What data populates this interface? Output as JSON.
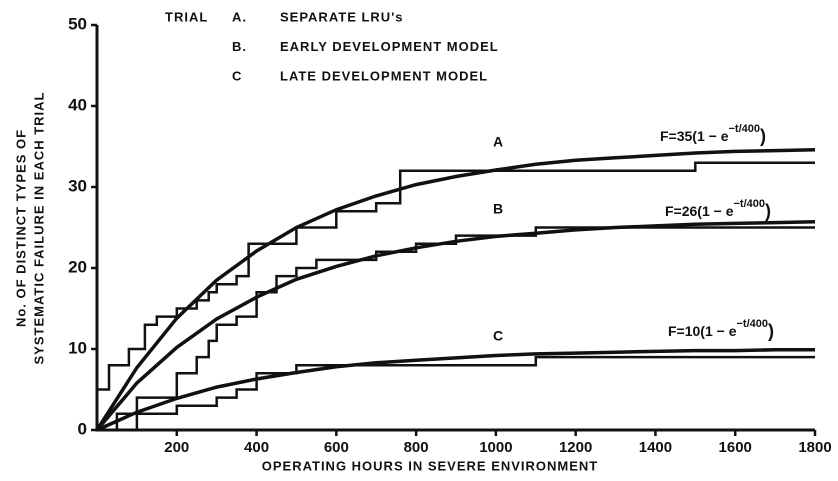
{
  "chart_data": {
    "type": "line",
    "x_label": "OPERATING HOURS IN SEVERE ENVIRONMENT",
    "y_label": [
      "No. OF DISTINCT TYPES OF",
      "SYSTEMATIC FAILURE IN EACH TRIAL"
    ],
    "legend_title": "TRIAL",
    "legend": [
      {
        "key": "A.",
        "label": "SEPARATE LRU's"
      },
      {
        "key": "B.",
        "label": "EARLY DEVELOPMENT MODEL"
      },
      {
        "key": "C",
        "label": "LATE DEVELOPMENT MODEL"
      }
    ],
    "xlim": [
      0,
      1800
    ],
    "xticks": [
      200,
      400,
      600,
      800,
      1000,
      1200,
      1400,
      1600,
      1800
    ],
    "ylim": [
      0,
      50
    ],
    "yticks": [
      0,
      10,
      20,
      30,
      40,
      50
    ],
    "color": "#111111",
    "x": [
      0,
      100,
      200,
      300,
      400,
      500,
      600,
      700,
      800,
      900,
      1000,
      1100,
      1200,
      1300,
      1400,
      1500,
      1600,
      1700,
      1800
    ],
    "series": [
      {
        "name": "A",
        "equation": {
          "prefix": "F=35(1 − e",
          "exponent": "−t/400",
          "suffix": ")"
        },
        "fit_values": [
          0,
          7.7,
          13.8,
          18.5,
          22.1,
          25.0,
          27.2,
          28.9,
          30.3,
          31.3,
          32.1,
          32.8,
          33.3,
          33.6,
          33.9,
          34.2,
          34.4,
          34.5,
          34.6
        ],
        "step_x": [
          0,
          30,
          80,
          120,
          150,
          200,
          250,
          280,
          300,
          350,
          380,
          500,
          600,
          700,
          760,
          1000,
          1500,
          1800
        ],
        "step_values": [
          5,
          8,
          10,
          13,
          14,
          15,
          16,
          17,
          18,
          19,
          23,
          25,
          27,
          28,
          32,
          32,
          33,
          33
        ]
      },
      {
        "name": "B",
        "equation": {
          "prefix": "F=26(1 − e",
          "exponent": "−t/400",
          "suffix": ")"
        },
        "fit_values": [
          0,
          5.8,
          10.2,
          13.7,
          16.4,
          18.6,
          20.2,
          21.5,
          22.5,
          23.3,
          23.9,
          24.3,
          24.7,
          25.0,
          25.2,
          25.4,
          25.5,
          25.6,
          25.7
        ],
        "step_x": [
          0,
          50,
          100,
          200,
          250,
          280,
          300,
          350,
          400,
          450,
          500,
          550,
          700,
          800,
          900,
          1100,
          1800
        ],
        "step_values": [
          0,
          2,
          4,
          7,
          9,
          11,
          13,
          14,
          17,
          19,
          20,
          21,
          22,
          23,
          24,
          25,
          25
        ]
      },
      {
        "name": "C",
        "equation": {
          "prefix": "F=10(1 − e",
          "exponent": "−t/400",
          "suffix": ")"
        },
        "fit_values": [
          0,
          2.2,
          3.9,
          5.3,
          6.3,
          7.1,
          7.8,
          8.3,
          8.6,
          8.9,
          9.2,
          9.4,
          9.5,
          9.6,
          9.7,
          9.8,
          9.8,
          9.9,
          9.9
        ],
        "step_x": [
          0,
          100,
          200,
          300,
          350,
          400,
          500,
          800,
          1100,
          1800
        ],
        "step_values": [
          0,
          2,
          3,
          4,
          5,
          7,
          8,
          8,
          9,
          9
        ]
      }
    ]
  }
}
